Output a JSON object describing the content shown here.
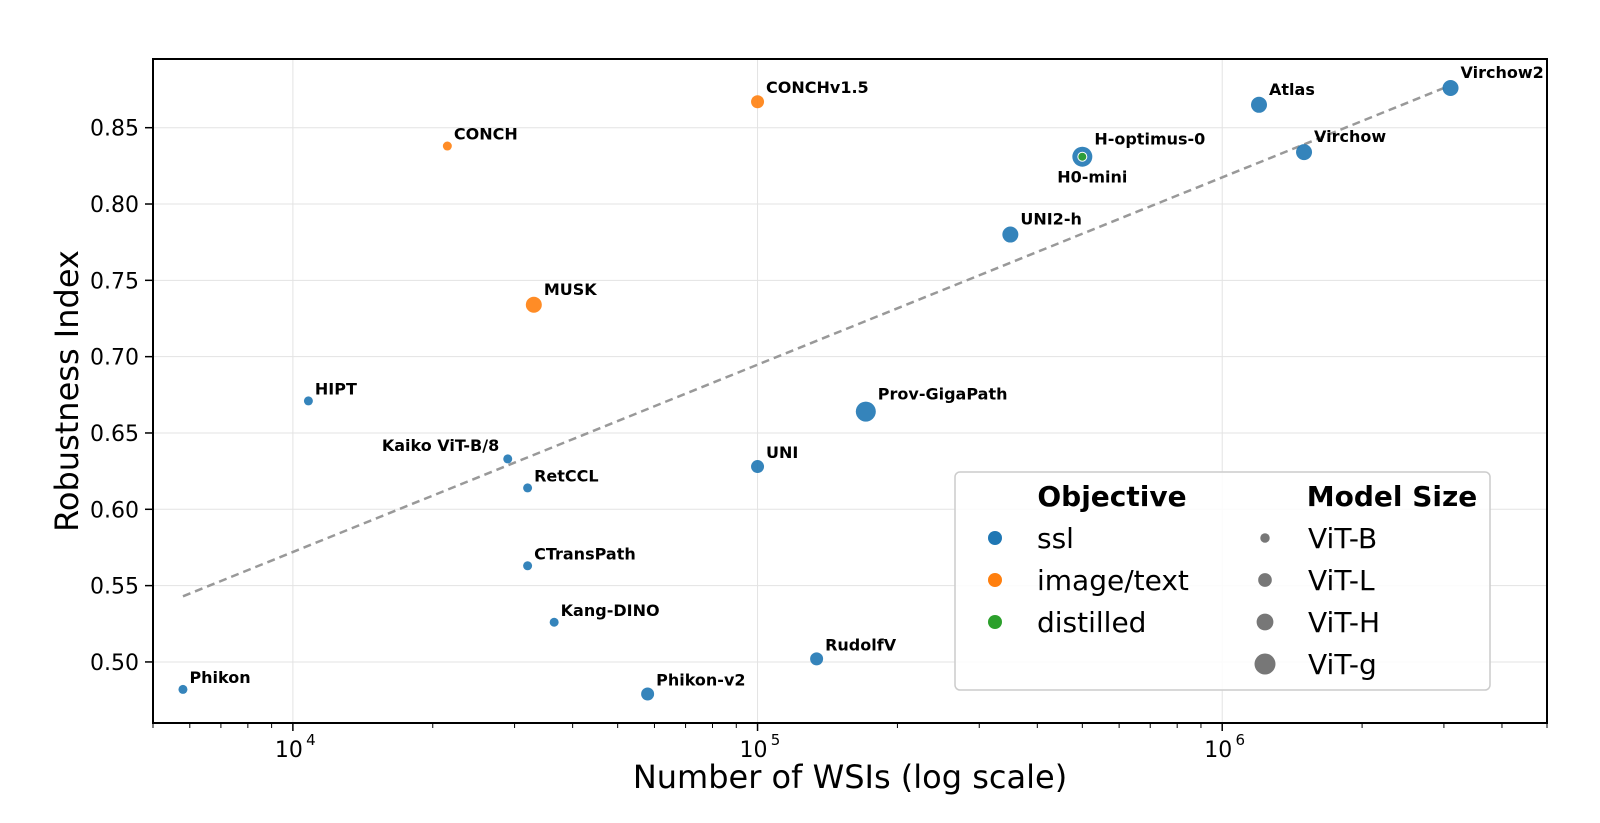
{
  "chart_data": {
    "type": "scatter",
    "xlabel": "Number of WSIs (log scale)",
    "ylabel": "Robustness Index",
    "x_scale": "log",
    "xlim": [
      5000,
      5000000
    ],
    "ylim": [
      0.46,
      0.895
    ],
    "x_ticks": [
      {
        "value": 10000,
        "base": "10",
        "exp": "4"
      },
      {
        "value": 100000,
        "base": "10",
        "exp": "5"
      },
      {
        "value": 1000000,
        "base": "10",
        "exp": "6"
      }
    ],
    "y_ticks": [
      {
        "value": 0.5,
        "label": "0.50"
      },
      {
        "value": 0.55,
        "label": "0.55"
      },
      {
        "value": 0.6,
        "label": "0.60"
      },
      {
        "value": 0.65,
        "label": "0.65"
      },
      {
        "value": 0.7,
        "label": "0.70"
      },
      {
        "value": 0.75,
        "label": "0.75"
      },
      {
        "value": 0.8,
        "label": "0.80"
      },
      {
        "value": 0.85,
        "label": "0.85"
      }
    ],
    "grid": true,
    "trendline": {
      "x": [
        5800,
        3000000
      ],
      "y": [
        0.543,
        0.876
      ],
      "style": "dashed",
      "color": "#999999"
    },
    "objectives": {
      "ssl": "#1f77b4",
      "image/text": "#ff7f0e",
      "distilled": "#2ca02c"
    },
    "points": [
      {
        "name": "Phikon",
        "x": 5800,
        "y": 0.482,
        "objective": "ssl",
        "size": "ViT-B",
        "label_pos": "right"
      },
      {
        "name": "HIPT",
        "x": 10800,
        "y": 0.671,
        "objective": "ssl",
        "size": "ViT-B",
        "label_pos": "right"
      },
      {
        "name": "CONCH",
        "x": 21500,
        "y": 0.838,
        "objective": "image/text",
        "size": "ViT-B",
        "label_pos": "right"
      },
      {
        "name": "Kaiko ViT-B/8",
        "x": 29000,
        "y": 0.633,
        "objective": "ssl",
        "size": "ViT-B",
        "label_pos": "left"
      },
      {
        "name": "RetCCL",
        "x": 32000,
        "y": 0.614,
        "objective": "ssl",
        "size": "ViT-B",
        "label_pos": "right"
      },
      {
        "name": "CTransPath",
        "x": 32000,
        "y": 0.563,
        "objective": "ssl",
        "size": "ViT-B",
        "label_pos": "right"
      },
      {
        "name": "MUSK",
        "x": 33000,
        "y": 0.734,
        "objective": "image/text",
        "size": "ViT-H",
        "label_pos": "right"
      },
      {
        "name": "Kang-DINO",
        "x": 36500,
        "y": 0.526,
        "objective": "ssl",
        "size": "ViT-B",
        "label_pos": "right"
      },
      {
        "name": "Phikon-v2",
        "x": 58000,
        "y": 0.479,
        "objective": "ssl",
        "size": "ViT-L",
        "label_pos": "right"
      },
      {
        "name": "UNI",
        "x": 100000,
        "y": 0.628,
        "objective": "ssl",
        "size": "ViT-L",
        "label_pos": "right"
      },
      {
        "name": "CONCHv1.5",
        "x": 100000,
        "y": 0.867,
        "objective": "image/text",
        "size": "ViT-L",
        "label_pos": "right"
      },
      {
        "name": "RudolfV",
        "x": 134000,
        "y": 0.502,
        "objective": "ssl",
        "size": "ViT-L",
        "label_pos": "right"
      },
      {
        "name": "Prov-GigaPath",
        "x": 171000,
        "y": 0.664,
        "objective": "ssl",
        "size": "ViT-g",
        "label_pos": "right"
      },
      {
        "name": "UNI2-h",
        "x": 350000,
        "y": 0.78,
        "objective": "ssl",
        "size": "ViT-H",
        "label_pos": "right"
      },
      {
        "name": "H-optimus-0",
        "x": 500000,
        "y": 0.831,
        "objective": "ssl",
        "size": "ViT-g",
        "label_pos": "right"
      },
      {
        "name": "H0-mini",
        "x": 500000,
        "y": 0.831,
        "objective": "distilled",
        "size": "ViT-B",
        "label_pos": "below"
      },
      {
        "name": "Atlas",
        "x": 1200000,
        "y": 0.865,
        "objective": "ssl",
        "size": "ViT-H",
        "label_pos": "right"
      },
      {
        "name": "Virchow",
        "x": 1500000,
        "y": 0.834,
        "objective": "ssl",
        "size": "ViT-H",
        "label_pos": "right"
      },
      {
        "name": "Virchow2",
        "x": 3100000,
        "y": 0.876,
        "objective": "ssl",
        "size": "ViT-H",
        "label_pos": "right"
      }
    ],
    "legend": {
      "placement": "lower-right",
      "objective_title": "Objective",
      "objective_items": [
        {
          "label": "ssl",
          "color": "#1f77b4"
        },
        {
          "label": "image/text",
          "color": "#ff7f0e"
        },
        {
          "label": "distilled",
          "color": "#2ca02c"
        }
      ],
      "size_title": "Model Size",
      "size_items": [
        {
          "label": "ViT-B",
          "size": "ViT-B"
        },
        {
          "label": "ViT-L",
          "size": "ViT-L"
        },
        {
          "label": "ViT-H",
          "size": "ViT-H"
        },
        {
          "label": "ViT-g",
          "size": "ViT-g"
        }
      ]
    }
  }
}
